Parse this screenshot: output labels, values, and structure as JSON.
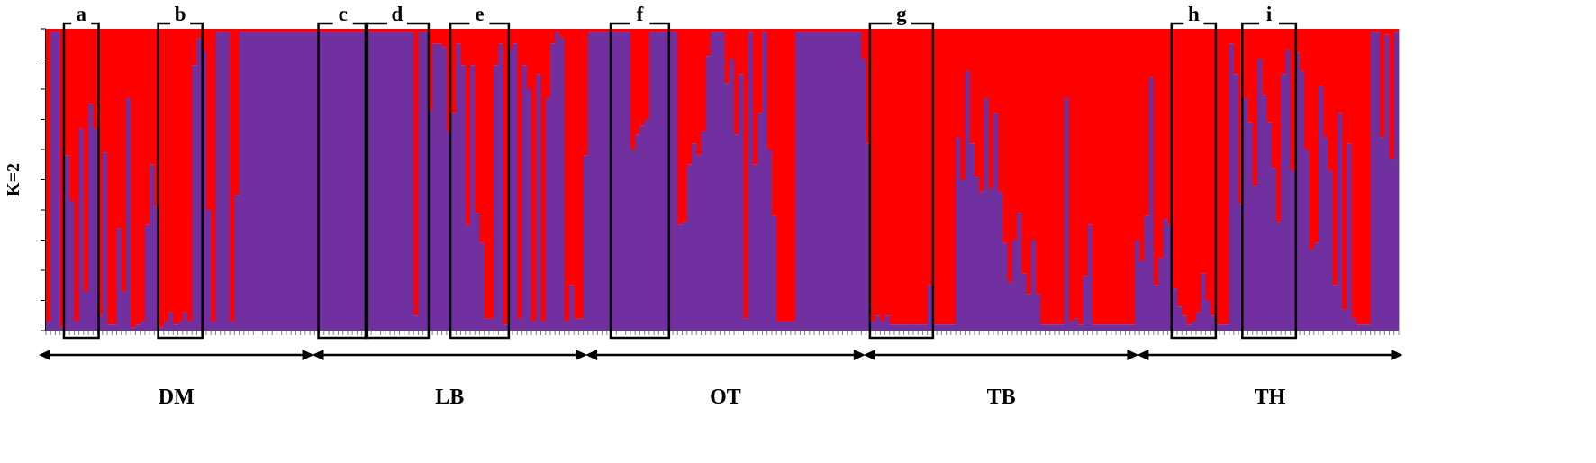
{
  "chart_data": {
    "type": "bar",
    "stacked": true,
    "normalized": true,
    "ylabel": "K=2",
    "ylim": [
      0,
      1
    ],
    "colors": {
      "purple": "#7030A0",
      "red": "#FF0000"
    },
    "groups": [
      {
        "label": "DM",
        "start": 0,
        "end": 57
      },
      {
        "label": "LB",
        "start": 58,
        "end": 115
      },
      {
        "label": "OT",
        "start": 116,
        "end": 174
      },
      {
        "label": "TB",
        "start": 175,
        "end": 232
      },
      {
        "label": "TH",
        "start": 233,
        "end": 288
      }
    ],
    "boxes": [
      {
        "label": "a",
        "start": 4,
        "end": 10
      },
      {
        "label": "b",
        "start": 24,
        "end": 32
      },
      {
        "label": "c",
        "start": 58,
        "end": 67
      },
      {
        "label": "d",
        "start": 68,
        "end": 80
      },
      {
        "label": "e",
        "start": 86,
        "end": 97
      },
      {
        "label": "f",
        "start": 120,
        "end": 131
      },
      {
        "label": "g",
        "start": 175,
        "end": 187
      },
      {
        "label": "h",
        "start": 239,
        "end": 247
      },
      {
        "label": "i",
        "start": 254,
        "end": 264
      }
    ],
    "purple_values": [
      0.03,
      0.99,
      0.99,
      0.01,
      0.58,
      0.43,
      0.03,
      0.67,
      0.13,
      0.75,
      0.67,
      0.05,
      0.59,
      0.02,
      0.02,
      0.34,
      0.13,
      0.77,
      0.01,
      0.02,
      0.03,
      0.35,
      0.55,
      0.41,
      0.01,
      0.03,
      0.06,
      0.02,
      0.03,
      0.06,
      0.03,
      0.88,
      0.97,
      0.93,
      0.4,
      0.03,
      0.99,
      0.99,
      0.99,
      0.03,
      0.45,
      0.99,
      0.99,
      0.99,
      0.99,
      0.99,
      0.99,
      0.99,
      0.99,
      0.99,
      0.99,
      0.99,
      0.99,
      0.99,
      0.99,
      0.99,
      0.99,
      0.99,
      0.99,
      0.99,
      0.99,
      0.99,
      0.99,
      0.99,
      0.99,
      0.99,
      0.99,
      0.99,
      0.99,
      0.99,
      0.99,
      0.99,
      0.99,
      0.99,
      0.99,
      0.99,
      0.99,
      0.99,
      0.05,
      0.99,
      0.99,
      0.73,
      0.95,
      0.95,
      0.94,
      0.66,
      0.72,
      0.95,
      0.88,
      0.35,
      0.88,
      0.39,
      0.29,
      0.04,
      0.04,
      0.88,
      0.95,
      0.02,
      0.93,
      0.95,
      0.04,
      0.88,
      0.8,
      0.03,
      0.85,
      0.03,
      0.77,
      0.95,
      0.99,
      0.97,
      0.03,
      0.15,
      0.04,
      0.04,
      0.58,
      0.99,
      0.99,
      0.99,
      0.99,
      0.99,
      0.99,
      0.99,
      0.99,
      0.99,
      0.6,
      0.65,
      0.68,
      0.7,
      0.99,
      0.99,
      0.99,
      0.99,
      0.99,
      0.99,
      0.35,
      0.36,
      0.55,
      0.62,
      0.58,
      0.66,
      0.91,
      0.99,
      0.99,
      0.99,
      0.82,
      0.9,
      0.65,
      0.85,
      0.04,
      0.99,
      0.55,
      0.72,
      0.99,
      0.6,
      0.38,
      0.03,
      0.03,
      0.03,
      0.03,
      0.99,
      0.99,
      0.99,
      0.99,
      0.99,
      0.99,
      0.99,
      0.99,
      0.99,
      0.99,
      0.99,
      0.99,
      0.99,
      0.99,
      0.9,
      0.62,
      0.03,
      0.05,
      0.03,
      0.05,
      0.02,
      0.02,
      0.02,
      0.02,
      0.02,
      0.02,
      0.02,
      0.02,
      0.15,
      0.02,
      0.02,
      0.02,
      0.02,
      0.02,
      0.64,
      0.5,
      0.86,
      0.62,
      0.51,
      0.46,
      0.77,
      0.47,
      0.72,
      0.46,
      0.29,
      0.16,
      0.3,
      0.39,
      0.19,
      0.12,
      0.3,
      0.12,
      0.02,
      0.02,
      0.02,
      0.02,
      0.02,
      0.77,
      0.03,
      0.04,
      0.02,
      0.18,
      0.35,
      0.02,
      0.02,
      0.02,
      0.02,
      0.02,
      0.02,
      0.02,
      0.02,
      0.02,
      0.3,
      0.23,
      0.38,
      0.84,
      0.15,
      0.24,
      0.37,
      0.35,
      0.14,
      0.08,
      0.05,
      0.02,
      0.03,
      0.06,
      0.19,
      0.1,
      0.05,
      0.02,
      0.02,
      0.02,
      0.95,
      0.85,
      0.42,
      0.77,
      0.69,
      0.48,
      0.9,
      0.78,
      0.69,
      0.54,
      0.36,
      0.85,
      0.93,
      0.53,
      0.92,
      0.86,
      0.6,
      0.27,
      0.29,
      0.81,
      0.64,
      0.53,
      0.15,
      0.72,
      0.07,
      0.62,
      0.04,
      0.02,
      0.02,
      0.02,
      0.99,
      0.99,
      0.64,
      0.98,
      0.57,
      0.99
    ]
  }
}
